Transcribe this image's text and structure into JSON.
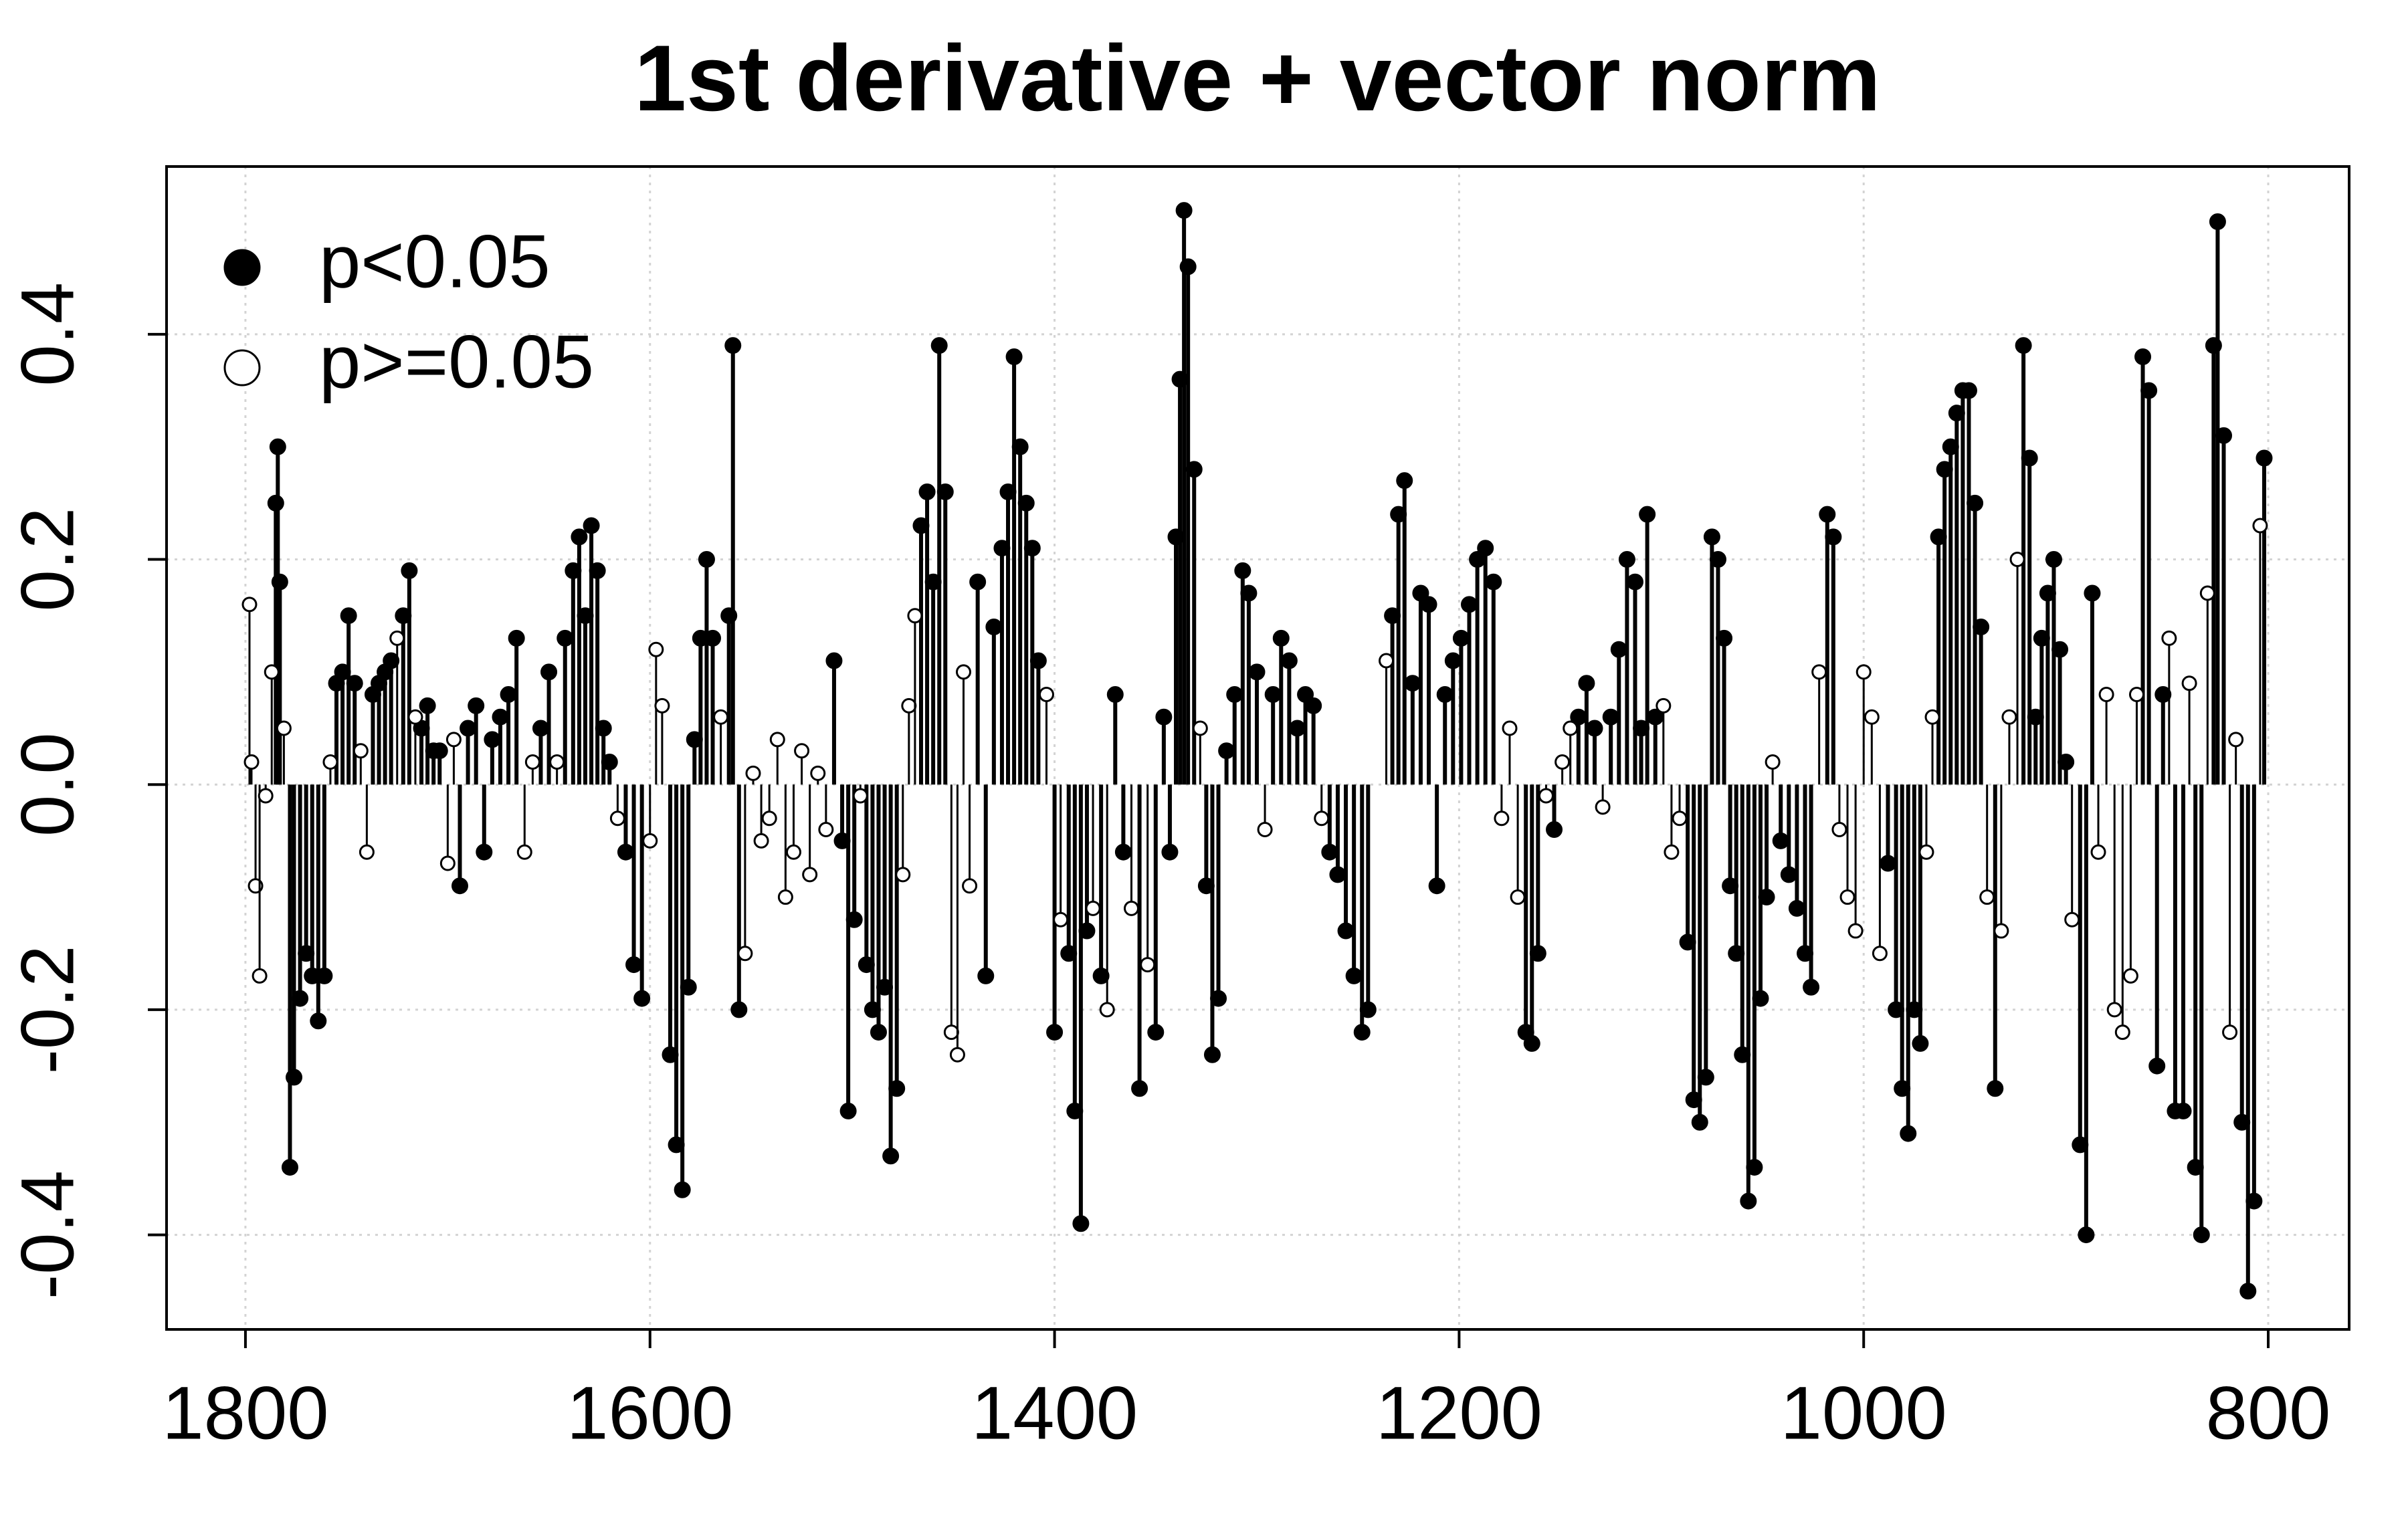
{
  "chart_data": {
    "type": "stem",
    "title": "1st derivative + vector norm",
    "xlim": [
      1839,
      760
    ],
    "xticks": [
      1800,
      1600,
      1400,
      1200,
      1000,
      800
    ],
    "ylim": [
      -0.484,
      0.549
    ],
    "yticks": [
      -0.4,
      -0.2,
      {
        "value": 0,
        "label": "0.0"
      },
      0.2,
      0.4
    ],
    "grid": true,
    "legend": "topleft",
    "series": [
      {
        "name": "p<0.05",
        "color": "#000000",
        "marker": "filled",
        "x": [
          1785,
          1784,
          1783,
          1778,
          1776,
          1773,
          1770,
          1767,
          1764,
          1761,
          1755,
          1752,
          1749,
          1746,
          1737,
          1734,
          1731,
          1728,
          1722,
          1719,
          1713,
          1710,
          1707,
          1704,
          1694,
          1690,
          1686,
          1682,
          1678,
          1674,
          1670,
          1666,
          1654,
          1650,
          1642,
          1638,
          1635,
          1632,
          1629,
          1626,
          1623,
          1620,
          1612,
          1608,
          1604,
          1590,
          1587,
          1584,
          1581,
          1578,
          1575,
          1572,
          1569,
          1561,
          1559,
          1556,
          1509,
          1505,
          1502,
          1499,
          1493,
          1490,
          1487,
          1484,
          1481,
          1478,
          1466,
          1463,
          1460,
          1457,
          1454,
          1438,
          1434,
          1430,
          1426,
          1423,
          1420,
          1417,
          1414,
          1411,
          1408,
          1400,
          1393,
          1390,
          1387,
          1384,
          1377,
          1370,
          1366,
          1358,
          1350,
          1346,
          1343,
          1340,
          1338,
          1336,
          1334,
          1331,
          1325,
          1322,
          1319,
          1315,
          1311,
          1307,
          1304,
          1300,
          1292,
          1288,
          1284,
          1280,
          1276,
          1272,
          1264,
          1260,
          1256,
          1252,
          1248,
          1245,
          1233,
          1230,
          1227,
          1223,
          1219,
          1215,
          1211,
          1207,
          1203,
          1199,
          1195,
          1191,
          1187,
          1183,
          1167,
          1164,
          1161,
          1153,
          1141,
          1137,
          1133,
          1125,
          1121,
          1117,
          1113,
          1110,
          1107,
          1103,
          1087,
          1084,
          1081,
          1078,
          1075,
          1072,
          1069,
          1066,
          1063,
          1060,
          1057,
          1054,
          1051,
          1048,
          1041,
          1037,
          1033,
          1029,
          1026,
          1018,
          1015,
          988,
          984,
          981,
          978,
          975,
          972,
          963,
          960,
          957,
          954,
          951,
          948,
          945,
          942,
          935,
          921,
          918,
          915,
          912,
          909,
          906,
          903,
          900,
          893,
          890,
          887,
          862,
          859,
          855,
          852,
          846,
          842,
          836,
          833,
          827,
          825,
          822,
          813,
          810,
          807,
          802
        ],
        "values": [
          0.25,
          0.3,
          0.18,
          -0.34,
          -0.26,
          -0.19,
          -0.15,
          -0.17,
          -0.21,
          -0.17,
          0.09,
          0.1,
          0.15,
          0.09,
          0.08,
          0.09,
          0.1,
          0.11,
          0.15,
          0.19,
          0.05,
          0.07,
          0.03,
          0.03,
          -0.09,
          0.05,
          0.07,
          -0.06,
          0.04,
          0.06,
          0.08,
          0.13,
          0.05,
          0.1,
          0.13,
          0.19,
          0.22,
          0.15,
          0.23,
          0.19,
          0.05,
          0.02,
          -0.06,
          -0.16,
          -0.19,
          -0.24,
          -0.32,
          -0.36,
          -0.18,
          0.04,
          0.13,
          0.2,
          0.13,
          0.15,
          0.39,
          -0.2,
          0.11,
          -0.05,
          -0.29,
          -0.12,
          -0.16,
          -0.2,
          -0.22,
          -0.18,
          -0.33,
          -0.27,
          0.23,
          0.26,
          0.18,
          0.39,
          0.26,
          0.18,
          -0.17,
          0.14,
          0.21,
          0.26,
          0.38,
          0.3,
          0.25,
          0.21,
          0.11,
          -0.22,
          -0.15,
          -0.29,
          -0.39,
          -0.13,
          -0.17,
          0.08,
          -0.06,
          -0.27,
          -0.22,
          0.06,
          -0.06,
          0.22,
          0.36,
          0.51,
          0.46,
          0.28,
          -0.09,
          -0.24,
          -0.19,
          0.03,
          0.08,
          0.19,
          0.17,
          0.1,
          0.08,
          0.13,
          0.11,
          0.05,
          0.08,
          0.07,
          -0.06,
          -0.08,
          -0.13,
          -0.17,
          -0.22,
          -0.2,
          0.15,
          0.24,
          0.27,
          0.09,
          0.17,
          0.16,
          -0.09,
          0.08,
          0.11,
          0.13,
          0.16,
          0.2,
          0.21,
          0.18,
          -0.22,
          -0.23,
          -0.15,
          -0.04,
          0.06,
          0.09,
          0.05,
          0.06,
          0.12,
          0.2,
          0.18,
          0.05,
          0.24,
          0.06,
          -0.14,
          -0.28,
          -0.3,
          -0.26,
          0.22,
          0.2,
          0.13,
          -0.09,
          -0.15,
          -0.24,
          -0.37,
          -0.34,
          -0.19,
          -0.1,
          -0.05,
          -0.08,
          -0.11,
          -0.15,
          -0.18,
          0.24,
          0.22,
          -0.07,
          -0.2,
          -0.27,
          -0.31,
          -0.2,
          -0.23,
          0.22,
          0.28,
          0.3,
          0.33,
          0.35,
          0.35,
          0.25,
          0.14,
          -0.27,
          0.39,
          0.29,
          0.06,
          0.13,
          0.17,
          0.2,
          0.12,
          0.02,
          -0.32,
          -0.4,
          0.17,
          0.38,
          0.35,
          -0.25,
          0.08,
          -0.29,
          -0.29,
          -0.34,
          -0.4,
          0.39,
          0.5,
          0.31,
          -0.3,
          -0.45,
          -0.37,
          0.29
        ]
      },
      {
        "name": "p>=0.05",
        "color": "#000000",
        "marker": "open",
        "x": [
          1798,
          1797,
          1795,
          1793,
          1790,
          1787,
          1781,
          1758,
          1743,
          1740,
          1725,
          1716,
          1700,
          1697,
          1662,
          1658,
          1646,
          1616,
          1600,
          1597,
          1594,
          1565,
          1553,
          1549,
          1545,
          1541,
          1537,
          1533,
          1529,
          1525,
          1521,
          1517,
          1513,
          1496,
          1475,
          1472,
          1469,
          1451,
          1448,
          1445,
          1442,
          1404,
          1397,
          1381,
          1374,
          1362,
          1354,
          1328,
          1296,
          1268,
          1236,
          1179,
          1175,
          1171,
          1157,
          1149,
          1145,
          1129,
          1099,
          1095,
          1091,
          1045,
          1022,
          1012,
          1008,
          1004,
          1000,
          996,
          992,
          969,
          966,
          939,
          932,
          928,
          924,
          897,
          884,
          880,
          876,
          872,
          868,
          865,
          849,
          839,
          830,
          819,
          816,
          804
        ],
        "values": [
          0.16,
          0.02,
          -0.09,
          -0.17,
          -0.01,
          0.1,
          0.05,
          0.02,
          0.03,
          -0.06,
          0.13,
          0.06,
          -0.07,
          0.04,
          -0.06,
          0.02,
          0.02,
          -0.03,
          -0.05,
          0.12,
          0.07,
          0.06,
          -0.15,
          0.01,
          -0.05,
          -0.03,
          0.04,
          -0.1,
          -0.06,
          0.03,
          -0.08,
          0.01,
          -0.04,
          -0.01,
          -0.08,
          0.07,
          0.15,
          -0.22,
          -0.24,
          0.1,
          -0.09,
          0.08,
          -0.12,
          -0.11,
          -0.2,
          -0.11,
          -0.16,
          0.05,
          -0.04,
          -0.03,
          0.11,
          -0.03,
          0.05,
          -0.1,
          -0.01,
          0.02,
          0.05,
          -0.02,
          0.07,
          -0.06,
          -0.03,
          0.02,
          0.1,
          -0.04,
          -0.1,
          -0.13,
          0.1,
          0.06,
          -0.15,
          -0.06,
          0.06,
          -0.1,
          -0.13,
          0.06,
          0.2,
          -0.12,
          -0.06,
          0.08,
          -0.2,
          -0.22,
          -0.17,
          0.08,
          0.13,
          0.09,
          0.17,
          -0.22,
          0.04,
          0.23
        ]
      }
    ]
  }
}
